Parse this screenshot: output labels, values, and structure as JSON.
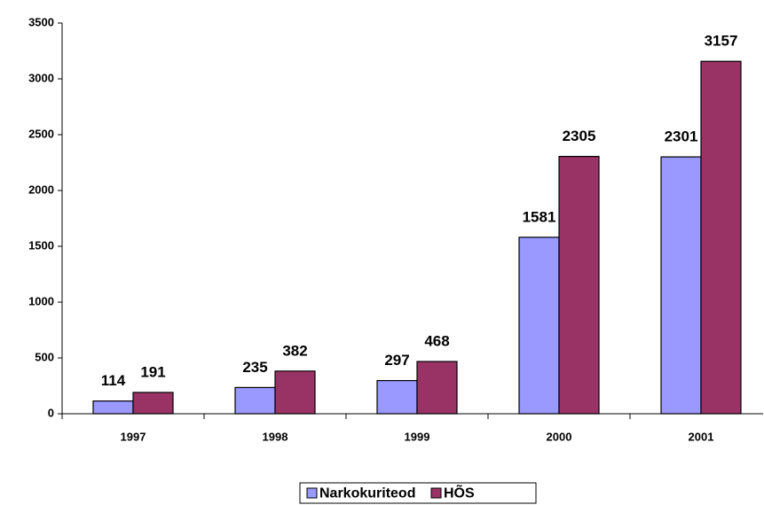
{
  "chart_data": {
    "type": "bar",
    "categories": [
      "1997",
      "1998",
      "1999",
      "2000",
      "2001"
    ],
    "series": [
      {
        "name": "Narkokuriteod",
        "color": "#9999ff",
        "values": [
          114,
          235,
          297,
          1581,
          2301
        ]
      },
      {
        "name": "HÕS",
        "color": "#993366",
        "values": [
          191,
          382,
          468,
          2305,
          3157
        ]
      }
    ],
    "ylim": [
      0,
      3500
    ],
    "yticks": [
      0,
      500,
      1000,
      1500,
      2000,
      2500,
      3000,
      3500
    ],
    "grid": false,
    "legend": "bottom"
  }
}
